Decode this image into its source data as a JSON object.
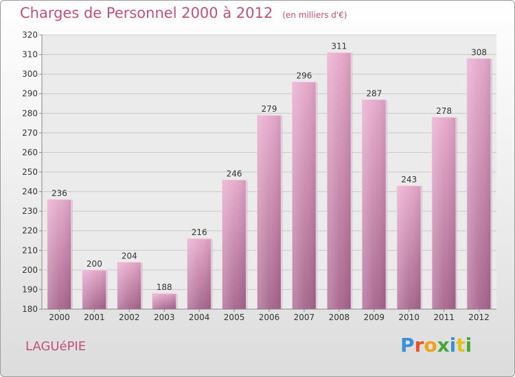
{
  "title": "Charges de Personnel 2000 à 2012",
  "subtitle": "(en milliers d'€)",
  "location": "LAGUéPIE",
  "logo": [
    "P",
    "r",
    "o",
    "x",
    "i",
    "t",
    "i"
  ],
  "chart_data": {
    "type": "bar",
    "categories": [
      "2000",
      "2001",
      "2002",
      "2003",
      "2004",
      "2005",
      "2006",
      "2007",
      "2008",
      "2009",
      "2010",
      "2011",
      "2012"
    ],
    "values": [
      236,
      200,
      204,
      188,
      216,
      246,
      279,
      296,
      311,
      287,
      243,
      278,
      308
    ],
    "ylim": [
      180,
      320
    ],
    "yticks": [
      180,
      190,
      200,
      210,
      220,
      230,
      240,
      250,
      260,
      270,
      280,
      290,
      300,
      310,
      320
    ],
    "grid": true,
    "bar_color": "#d98bb3"
  }
}
